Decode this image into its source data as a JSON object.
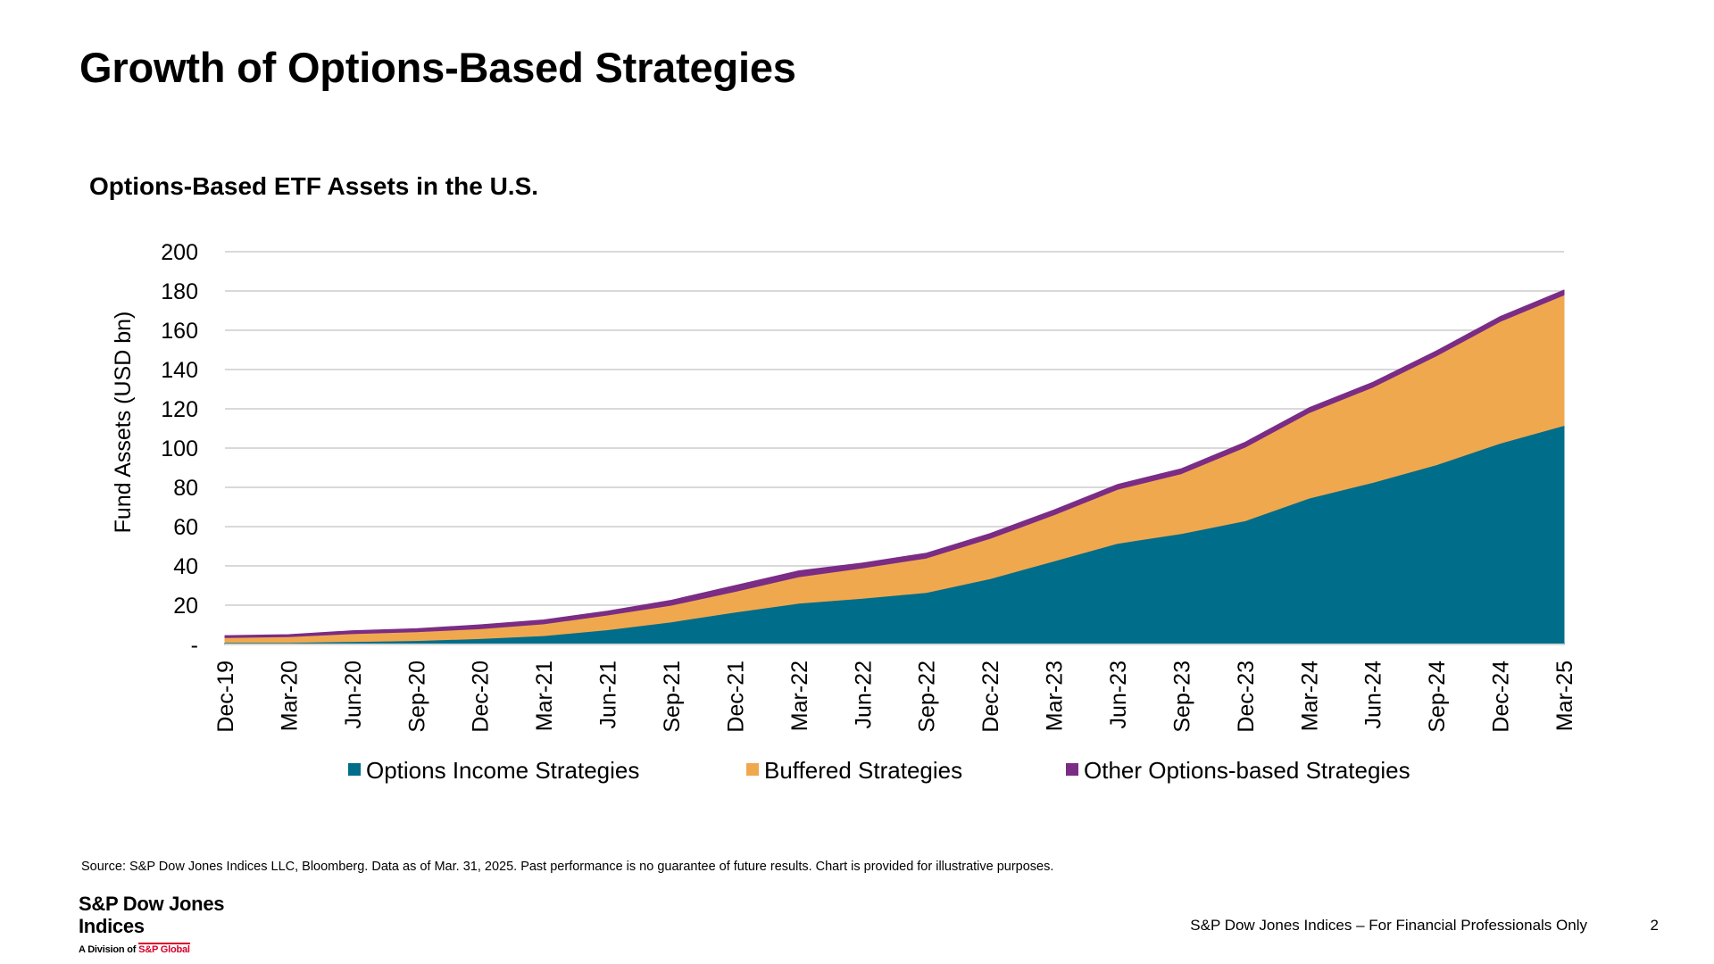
{
  "slide": {
    "title": "Growth of Options-Based Strategies",
    "source": "Source: S&P Dow Jones Indices LLC, Bloomberg.  Data as of Mar. 31, 2025.  Past performance is no guarantee of future results.  Chart is provided for illustrative purposes.",
    "footer": "S&P Dow Jones Indices – For Financial Professionals Only",
    "page_number": "2",
    "logo": {
      "name": "S&P Dow Jones Indices",
      "division_prefix": "A Division of",
      "division_parent": "S&P Global"
    }
  },
  "chart_data": {
    "type": "area",
    "stacked": true,
    "title": "Options-Based ETF Assets in the U.S.",
    "ylabel": "Fund Assets (USD bn)",
    "xlabel": "",
    "ylim": [
      0,
      200
    ],
    "yticks": [
      "-",
      "20",
      "40",
      "60",
      "80",
      "100",
      "120",
      "140",
      "160",
      "180",
      "200"
    ],
    "ytick_values": [
      0,
      20,
      40,
      60,
      80,
      100,
      120,
      140,
      160,
      180,
      200
    ],
    "grid": true,
    "legend_position": "bottom",
    "categories": [
      "Dec-19",
      "Mar-20",
      "Jun-20",
      "Sep-20",
      "Dec-20",
      "Mar-21",
      "Jun-21",
      "Sep-21",
      "Dec-21",
      "Mar-22",
      "Jun-22",
      "Sep-22",
      "Dec-22",
      "Mar-23",
      "Jun-23",
      "Sep-23",
      "Dec-23",
      "Mar-24",
      "Jun-24",
      "Sep-24",
      "Dec-24",
      "Mar-25"
    ],
    "series": [
      {
        "name": "Options Income Strategies",
        "color": "#006d8a",
        "values": [
          1,
          1,
          1.5,
          2,
          3,
          4.5,
          7.5,
          11.5,
          16.5,
          21,
          23.5,
          26.5,
          33.5,
          42.5,
          51.5,
          56.5,
          63,
          74.5,
          82.5,
          91.5,
          102.5,
          111.5
        ]
      },
      {
        "name": "Buffered Strategies",
        "color": "#f0a84e",
        "values": [
          2.5,
          3,
          4,
          4.5,
          5,
          6,
          7.5,
          8.5,
          10.5,
          13.5,
          15.5,
          17.5,
          20.5,
          23.5,
          27.5,
          30.5,
          37.5,
          43.5,
          48.5,
          55.5,
          62,
          66.5
        ]
      },
      {
        "name": "Other Options-based Strategies",
        "color": "#7b2c85",
        "values": [
          1,
          1,
          1.5,
          1.5,
          2,
          2,
          2,
          2.5,
          3,
          3,
          2.5,
          2.5,
          2.5,
          2.5,
          2.5,
          2.5,
          2.5,
          2.5,
          2.5,
          2.5,
          2.5,
          2.5
        ]
      }
    ]
  }
}
